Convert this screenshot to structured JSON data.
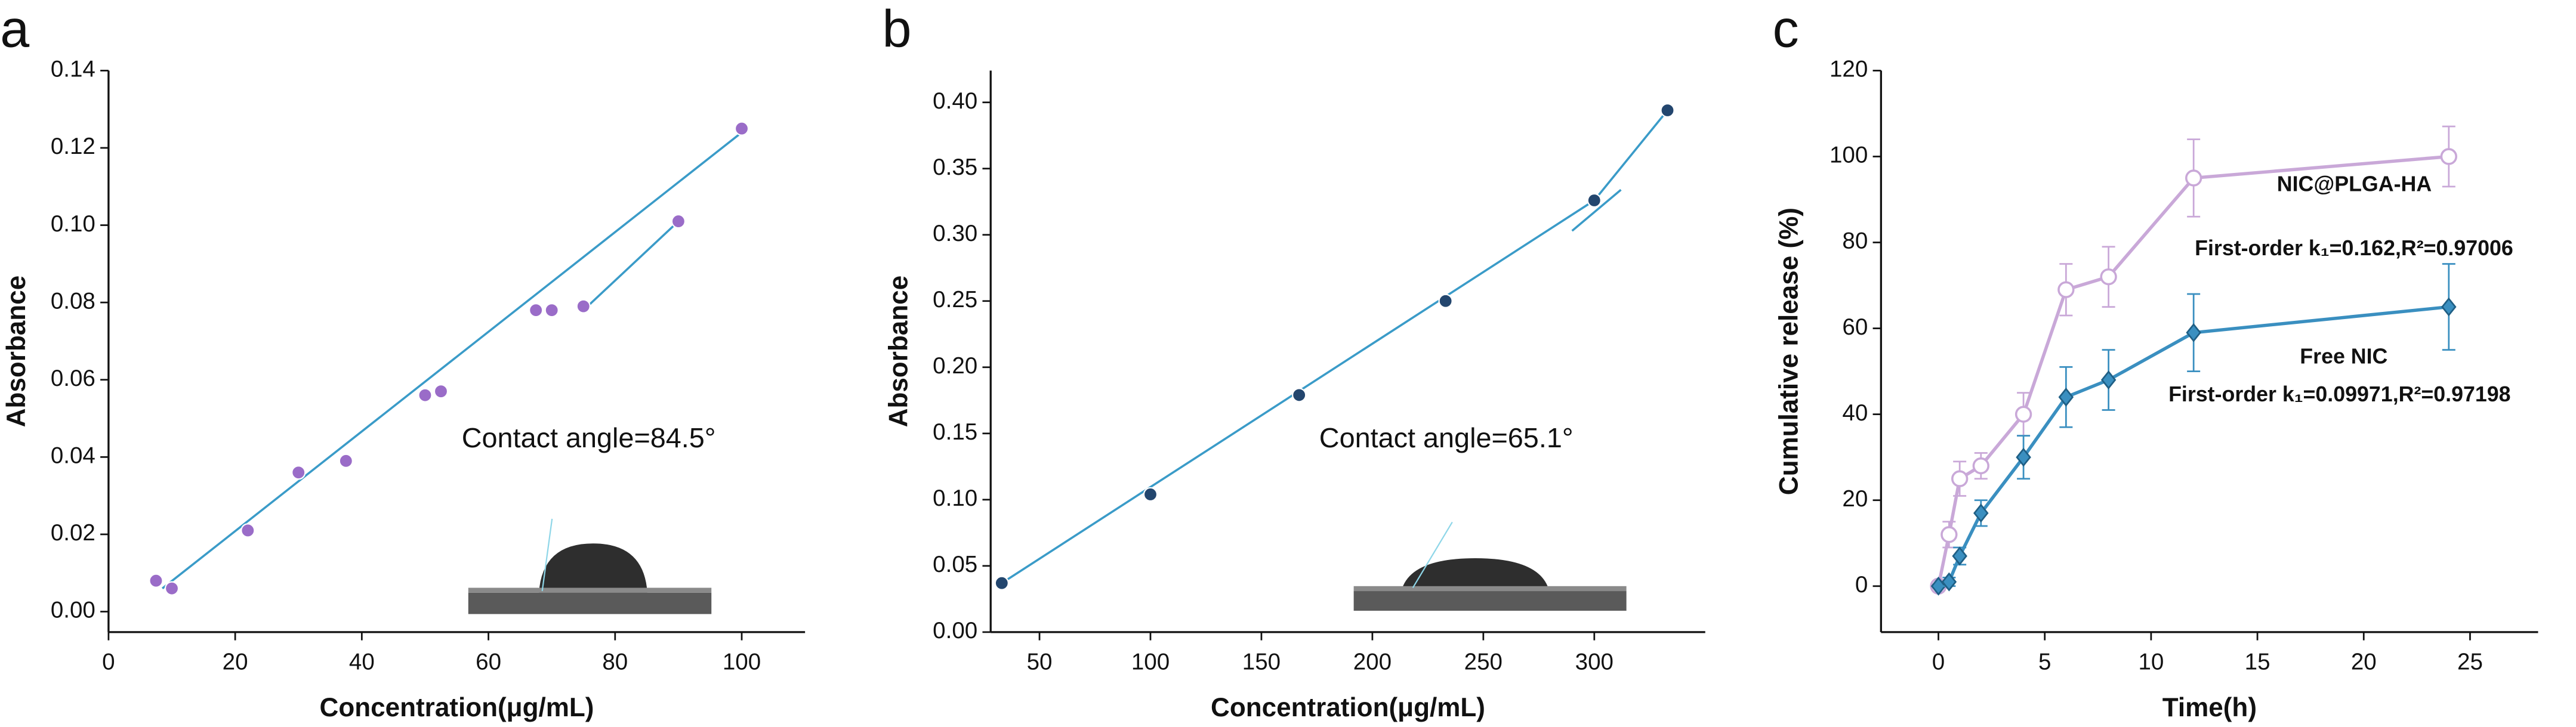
{
  "chart_data": [
    {
      "type": "scatter",
      "panel_label": "a",
      "x_label": "Concentration(μg/mL)",
      "y_label": "Absorbance",
      "x": [
        7.5,
        10,
        22,
        30,
        37.5,
        50,
        52.5,
        67.5,
        70,
        75,
        90,
        100
      ],
      "values": [
        0.008,
        0.006,
        0.021,
        0.036,
        0.039,
        0.056,
        0.057,
        0.078,
        0.078,
        0.079,
        0.101,
        0.125
      ],
      "color": "#9a6cc8",
      "fit_color": "#3a9bc8",
      "fit_lines": [
        {
          "x": [
            8.5,
            100
          ],
          "values": [
            0.006,
            0.124
          ]
        },
        {
          "x": [
            75,
            90
          ],
          "values": [
            0.078,
            0.101
          ]
        }
      ],
      "xlim": [
        0,
        110
      ],
      "ylim": [
        -0.0053,
        0.14
      ],
      "xticks": [
        0,
        20,
        40,
        60,
        80,
        100
      ],
      "yticks": [
        {
          "value": 0,
          "label": "0.00"
        },
        {
          "value": 0.02,
          "label": "0.02"
        },
        {
          "value": 0.04,
          "label": "0.04"
        },
        {
          "value": 0.06,
          "label": "0.06"
        },
        {
          "value": 0.08,
          "label": "0.08"
        },
        {
          "value": 0.1,
          "label": "0.10"
        },
        {
          "value": 0.12,
          "label": "0.12"
        },
        {
          "value": 0.14,
          "label": "0.14"
        }
      ],
      "annotations": [
        "Contact angle=84.5°"
      ]
    },
    {
      "type": "scatter",
      "panel_label": "b",
      "x_label": "Concentration(μg/mL)",
      "y_label": "Absorbance",
      "x": [
        33,
        100,
        167,
        233,
        300,
        333
      ],
      "values": [
        0.037,
        0.104,
        0.179,
        0.25,
        0.326,
        0.394
      ],
      "color": "#23466e",
      "fit_color": "#3a9bc8",
      "fit_lines": [
        {
          "x": [
            33,
            300,
            333
          ],
          "values": [
            0.037,
            0.326,
            0.394
          ]
        },
        {
          "x": [
            290,
            312
          ],
          "values": [
            0.303,
            0.334
          ]
        }
      ],
      "xlim": [
        28,
        350
      ],
      "ylim": [
        0,
        0.424
      ],
      "xticks": [
        50,
        100,
        150,
        200,
        250,
        300
      ],
      "yticks": [
        {
          "value": 0,
          "label": "0.00"
        },
        {
          "value": 0.05,
          "label": "0.05"
        },
        {
          "value": 0.1,
          "label": "0.10"
        },
        {
          "value": 0.15,
          "label": "0.15"
        },
        {
          "value": 0.2,
          "label": "0.20"
        },
        {
          "value": 0.25,
          "label": "0.25"
        },
        {
          "value": 0.3,
          "label": "0.30"
        },
        {
          "value": 0.35,
          "label": "0.35"
        },
        {
          "value": 0.4,
          "label": "0.40"
        }
      ],
      "annotations": [
        "Contact angle=65.1°"
      ]
    },
    {
      "type": "line",
      "panel_label": "c",
      "x_label": "Time(h)",
      "y_label": "Cumulative release (%)",
      "x": [
        0,
        0.5,
        1,
        2,
        4,
        6,
        8,
        12,
        24
      ],
      "series": [
        {
          "color": "#c9a8d8",
          "marker": "circle",
          "values": [
            0,
            12,
            25,
            28,
            40,
            69,
            72,
            95,
            100
          ],
          "errors": [
            0,
            3,
            4,
            3,
            5,
            6,
            7,
            9,
            7
          ]
        },
        {
          "color": "#3a8fc0",
          "marker": "diamond",
          "values": [
            0,
            1,
            7,
            17,
            30,
            44,
            48,
            59,
            65
          ],
          "errors": [
            0,
            1,
            2,
            3,
            5,
            7,
            7,
            9,
            10
          ]
        }
      ],
      "xlim": [
        -2.7,
        28.2
      ],
      "ylim": [
        -10.7,
        120
      ],
      "xticks": [
        0,
        5,
        10,
        15,
        20,
        25
      ],
      "yticks": [
        0,
        20,
        40,
        60,
        80,
        100,
        120
      ],
      "annotations": [
        "NIC@PLGA-HA",
        "First-order k₁=0.162,R²=0.97006",
        "Free NIC",
        "First-order k₁=0.09971,R²=0.97198"
      ]
    }
  ]
}
